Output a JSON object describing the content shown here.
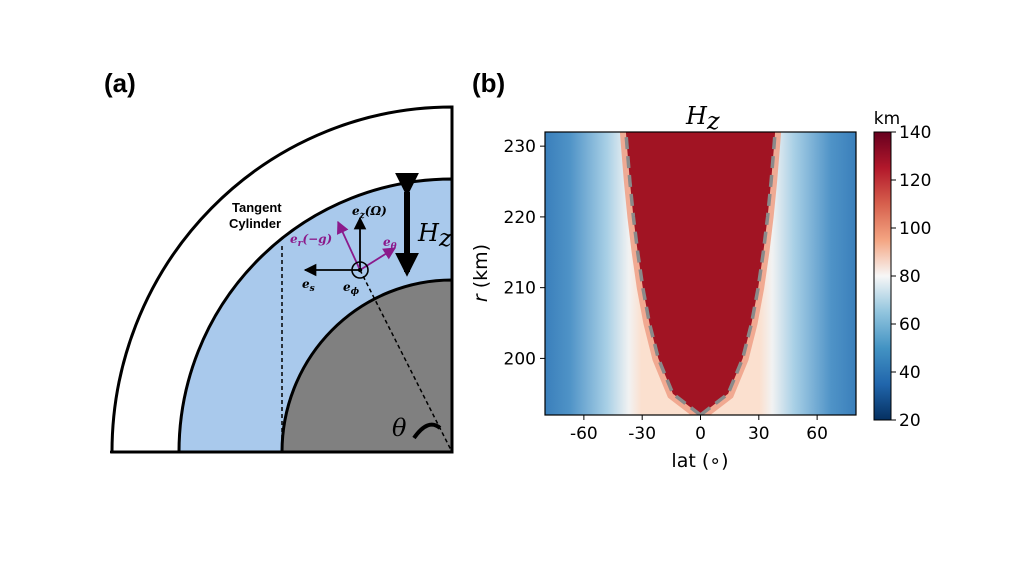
{
  "panel_a": {
    "label": "(a)",
    "tangent_line1": "Tangent",
    "tangent_line2": "Cylinder",
    "vectors": {
      "ez": {
        "main": "e",
        "sub": "z",
        "arg": "(Ω)"
      },
      "er": {
        "main": "e",
        "sub": "r",
        "arg": "(−g)"
      },
      "etheta": {
        "main": "e",
        "sub": "θ"
      },
      "es": {
        "main": "e",
        "sub": "s"
      },
      "ephi": {
        "main": "e",
        "sub": "ϕ"
      }
    },
    "hz_main": "H",
    "hz_sub": "z",
    "theta": "θ",
    "colors": {
      "shell": "#a9c9ec",
      "core": "#808080",
      "vector_purple": "#8b1a8b"
    }
  },
  "panel_b": {
    "label": "(b)",
    "title_main": "H",
    "title_sub": "z",
    "colorbar_unit": "km",
    "colorbar_ticks": [
      "20",
      "40",
      "60",
      "80",
      "100",
      "120",
      "140"
    ],
    "x_ticks": [
      "-60",
      "-30",
      "0",
      "30",
      "60"
    ],
    "y_ticks": [
      "200",
      "210",
      "220",
      "230"
    ],
    "xlabel": "lat (∘)",
    "ylabel_var": "r",
    "ylabel_unit": " (km)"
  },
  "chart_data": {
    "type": "heatmap",
    "title": "H_z",
    "xlabel": "lat (∘)",
    "ylabel": "r (km)",
    "xlim": [
      -80,
      80
    ],
    "ylim": [
      192,
      232
    ],
    "colorbar": {
      "label": "km",
      "range": [
        20,
        140
      ],
      "colormap": "RdBu_r"
    },
    "description_values": {
      "outside_tangent_cylinder_min": 40,
      "near_boundary_max": 140,
      "inside_tangent_cylinder": 140
    },
    "tangent_cylinder_boundary": {
      "r": [
        192,
        195,
        200,
        205,
        210,
        215,
        220,
        225,
        230,
        232
      ],
      "lat_abs": [
        0,
        14.2,
        21.7,
        26.3,
        29.7,
        32.3,
        34.5,
        36.3,
        37.8,
        38.4
      ]
    }
  }
}
